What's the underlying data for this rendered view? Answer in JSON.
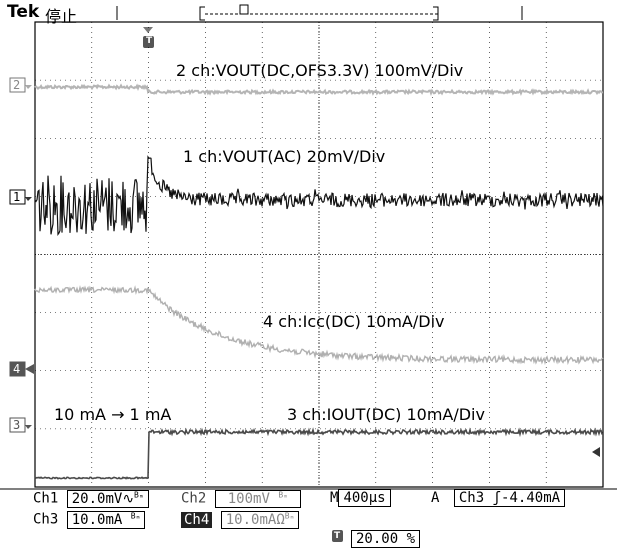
{
  "header": {
    "brand": "Tek",
    "run_state": "停止"
  },
  "trigger_marker": "T",
  "channel_markers": {
    "ch2": "2",
    "ch1": "1",
    "ch4": "4",
    "ch3": "3"
  },
  "annotations": {
    "ch2": "2 ch:VOUT(DC,OFS3.3V) 100mV/Div",
    "ch1": "1 ch:VOUT(AC) 20mV/Div",
    "ch4": "4 ch:Icc(DC) 10mA/Div",
    "ch3": "3 ch:IOUT(DC) 10mA/Div",
    "step": "10 mA → 1 mA"
  },
  "status": {
    "ch1_label": "Ch1",
    "ch1_scale": "20.0mV",
    "ch1_flags": "∿",
    "ch1_bw": "Bₘ",
    "ch2_label": "Ch2",
    "ch2_scale": "100mV",
    "ch2_bw": "Bₘ",
    "timebase_label": "M",
    "timebase": "400µs",
    "trigger_mode": "A",
    "trigger_source": "Ch3",
    "trigger_slope": "ʃ",
    "trigger_level": "-4.40mA",
    "ch3_label": "Ch3",
    "ch3_scale": "10.0mA",
    "ch3_bw": "Bₘ",
    "ch4_label": "Ch4",
    "ch4_scale": "10.0mA",
    "ch4_flags": "Ω",
    "ch4_bw": "Bₘ",
    "trigger_position_marker": "T",
    "trigger_position": "20.00 %"
  },
  "colors": {
    "grid": "#000000",
    "ch1": "#111111",
    "ch2": "#b5b5b5",
    "ch3": "#4a4a4a",
    "ch4": "#b0b0b0"
  }
}
